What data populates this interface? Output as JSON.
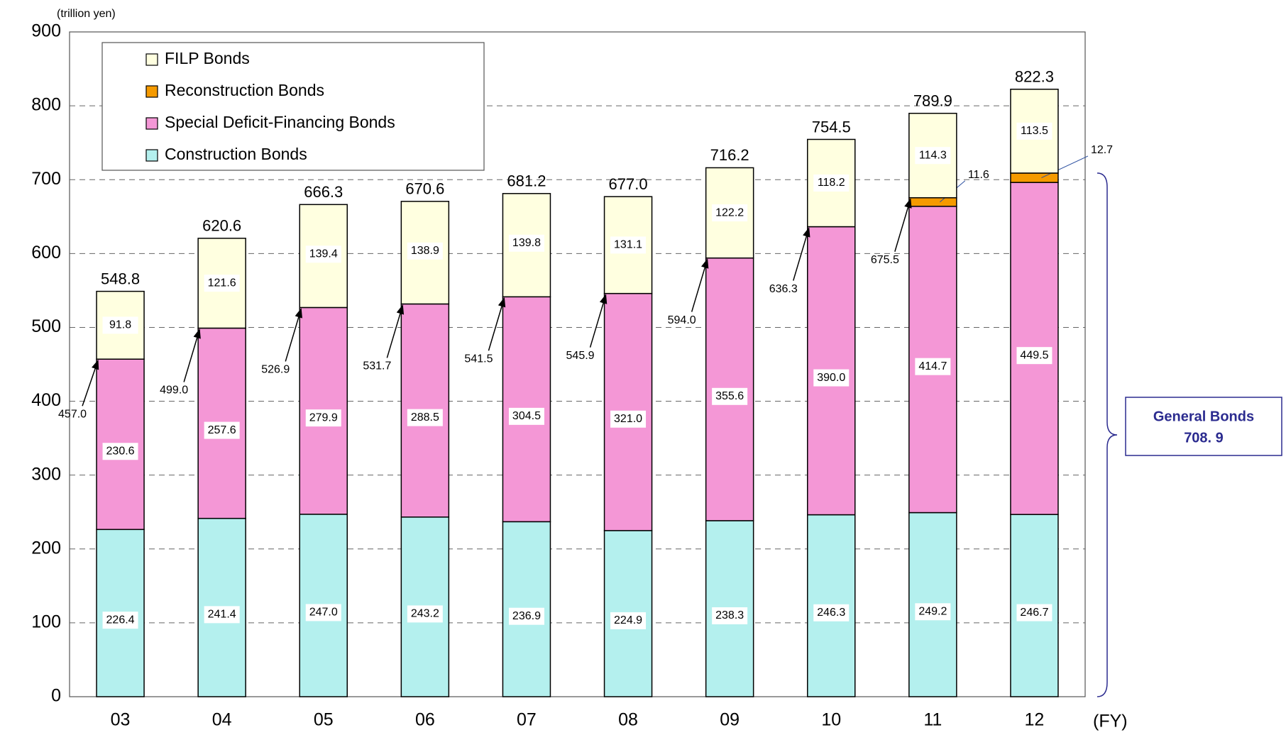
{
  "chart_data": {
    "type": "stacked_bar",
    "y_unit": "(trillion yen)",
    "x_label": "(FY)",
    "categories": [
      "03",
      "04",
      "05",
      "06",
      "07",
      "08",
      "09",
      "10",
      "11",
      "12"
    ],
    "series": [
      {
        "name": "Construction Bonds",
        "color": "#b4f0ee",
        "values": [
          226.4,
          241.4,
          247.0,
          243.2,
          236.9,
          224.9,
          238.3,
          246.3,
          249.2,
          246.7
        ],
        "value_labels": [
          "226.4",
          "241.4",
          "247.0",
          "243.2",
          "236.9",
          "224.9",
          "238.3",
          "246.3",
          "249.2",
          "246.7"
        ]
      },
      {
        "name": "Special Deficit-Financing Bonds",
        "color": "#f497d6",
        "values": [
          230.6,
          257.6,
          279.9,
          288.5,
          304.5,
          321.0,
          355.6,
          390.0,
          414.7,
          449.5
        ],
        "value_labels": [
          "230.6",
          "257.6",
          "279.9",
          "288.5",
          "304.5",
          "321.0",
          "355.6",
          "390.0",
          "414.7",
          "449.5"
        ]
      },
      {
        "name": "Reconstruction Bonds",
        "color": "#f59a00",
        "values": [
          null,
          null,
          null,
          null,
          null,
          null,
          null,
          null,
          11.6,
          12.7
        ],
        "value_labels": [
          null,
          null,
          null,
          null,
          null,
          null,
          null,
          null,
          "11.6",
          "12.7"
        ]
      },
      {
        "name": "FILP Bonds",
        "color": "#ffffe0",
        "values": [
          91.8,
          121.6,
          139.4,
          138.9,
          139.8,
          131.1,
          122.2,
          118.2,
          114.3,
          113.5
        ],
        "value_labels": [
          "91.8",
          "121.6",
          "139.4",
          "138.9",
          "139.8",
          "131.1",
          "122.2",
          "118.2",
          "114.3",
          "113.5"
        ]
      }
    ],
    "totals": {
      "values": [
        548.8,
        620.6,
        666.3,
        670.6,
        681.2,
        677.0,
        716.2,
        754.5,
        789.9,
        822.3
      ],
      "value_labels": [
        "548.8",
        "620.6",
        "666.3",
        "670.6",
        "681.2",
        "677.0",
        "716.2",
        "754.5",
        "789.9",
        "822.3"
      ]
    },
    "subtotals": {
      "values": [
        457.0,
        499.0,
        526.9,
        531.7,
        541.5,
        545.9,
        594.0,
        636.3,
        675.5,
        null
      ],
      "value_labels": [
        "457.0",
        "499.0",
        "526.9",
        "531.7",
        "541.5",
        "545.9",
        "594.0",
        "636.3",
        "675.5",
        null
      ]
    },
    "general_bonds": {
      "title": "General Bonds",
      "value": 708.9,
      "label": "708. 9"
    },
    "ylim": [
      0,
      900
    ],
    "yticks": [
      0,
      100,
      200,
      300,
      400,
      500,
      600,
      700,
      800,
      900
    ],
    "grid": true
  }
}
